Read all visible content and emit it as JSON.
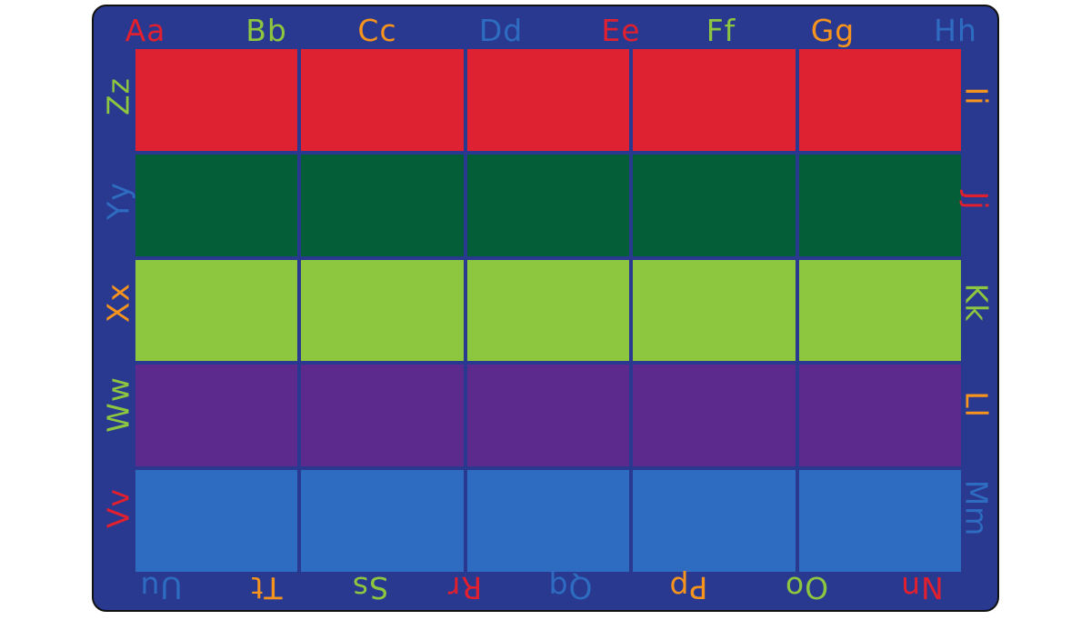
{
  "rug": {
    "border_color": "#2a3990",
    "row_colors": [
      "#de2232",
      "#045e37",
      "#8dc63f",
      "#5c2a8c",
      "#2d6cc0"
    ],
    "columns": 5,
    "letters": {
      "top": [
        {
          "text": "Aa",
          "color": "#e0202e"
        },
        {
          "text": "Bb",
          "color": "#8dc63f"
        },
        {
          "text": "Cc",
          "color": "#f7941d"
        },
        {
          "text": "Dd",
          "color": "#2d6cc0"
        },
        {
          "text": "Ee",
          "color": "#e0202e"
        },
        {
          "text": "Ff",
          "color": "#8dc63f"
        },
        {
          "text": "Gg",
          "color": "#f7941d"
        },
        {
          "text": "Hh",
          "color": "#2d6cc0"
        }
      ],
      "right": [
        {
          "text": "Ii",
          "color": "#f7941d"
        },
        {
          "text": "Jj",
          "color": "#e0202e"
        },
        {
          "text": "Kk",
          "color": "#8dc63f"
        },
        {
          "text": "Ll",
          "color": "#f7941d"
        },
        {
          "text": "Mm",
          "color": "#2d6cc0"
        }
      ],
      "bottom": [
        {
          "text": "Uu",
          "color": "#2d6cc0"
        },
        {
          "text": "Tt",
          "color": "#f7941d"
        },
        {
          "text": "Ss",
          "color": "#8dc63f"
        },
        {
          "text": "Rr",
          "color": "#e0202e"
        },
        {
          "text": "Qq",
          "color": "#2d6cc0"
        },
        {
          "text": "Pp",
          "color": "#f7941d"
        },
        {
          "text": "Oo",
          "color": "#8dc63f"
        },
        {
          "text": "Nn",
          "color": "#e0202e"
        }
      ],
      "left": [
        {
          "text": "Zz",
          "color": "#8dc63f"
        },
        {
          "text": "Yy",
          "color": "#2d6cc0"
        },
        {
          "text": "Xx",
          "color": "#f7941d"
        },
        {
          "text": "Ww",
          "color": "#8dc63f"
        },
        {
          "text": "Vv",
          "color": "#e0202e"
        }
      ]
    }
  }
}
